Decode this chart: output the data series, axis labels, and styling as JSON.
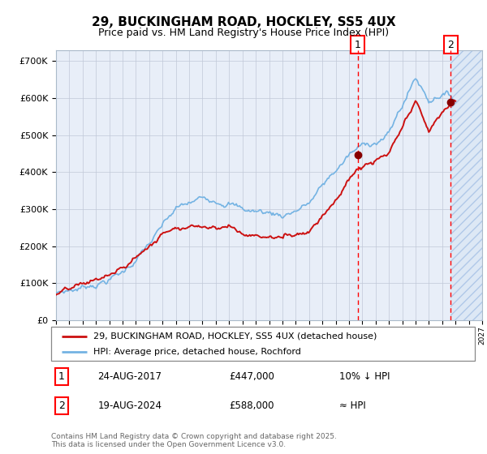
{
  "title": "29, BUCKINGHAM ROAD, HOCKLEY, SS5 4UX",
  "subtitle": "Price paid vs. HM Land Registry's House Price Index (HPI)",
  "legend_line1": "29, BUCKINGHAM ROAD, HOCKLEY, SS5 4UX (detached house)",
  "legend_line2": "HPI: Average price, detached house, Rochford",
  "annotation1_date": "24-AUG-2017",
  "annotation1_price": "£447,000",
  "annotation1_hpi": "10% ↓ HPI",
  "annotation2_date": "19-AUG-2024",
  "annotation2_price": "£588,000",
  "annotation2_hpi": "≈ HPI",
  "footnote": "Contains HM Land Registry data © Crown copyright and database right 2025.\nThis data is licensed under the Open Government Licence v3.0.",
  "event1_year": 2017.65,
  "event2_year": 2024.65,
  "hpi_color": "#74b3e3",
  "price_color": "#cc1111",
  "background_color": "#e8eef8",
  "hatch_bg_color": "#dde8f5",
  "ylim_min": 0,
  "ylim_max": 730000,
  "xlim_start": 1995,
  "xlim_end": 2027,
  "sale1_price": 447000,
  "sale2_price": 588000
}
